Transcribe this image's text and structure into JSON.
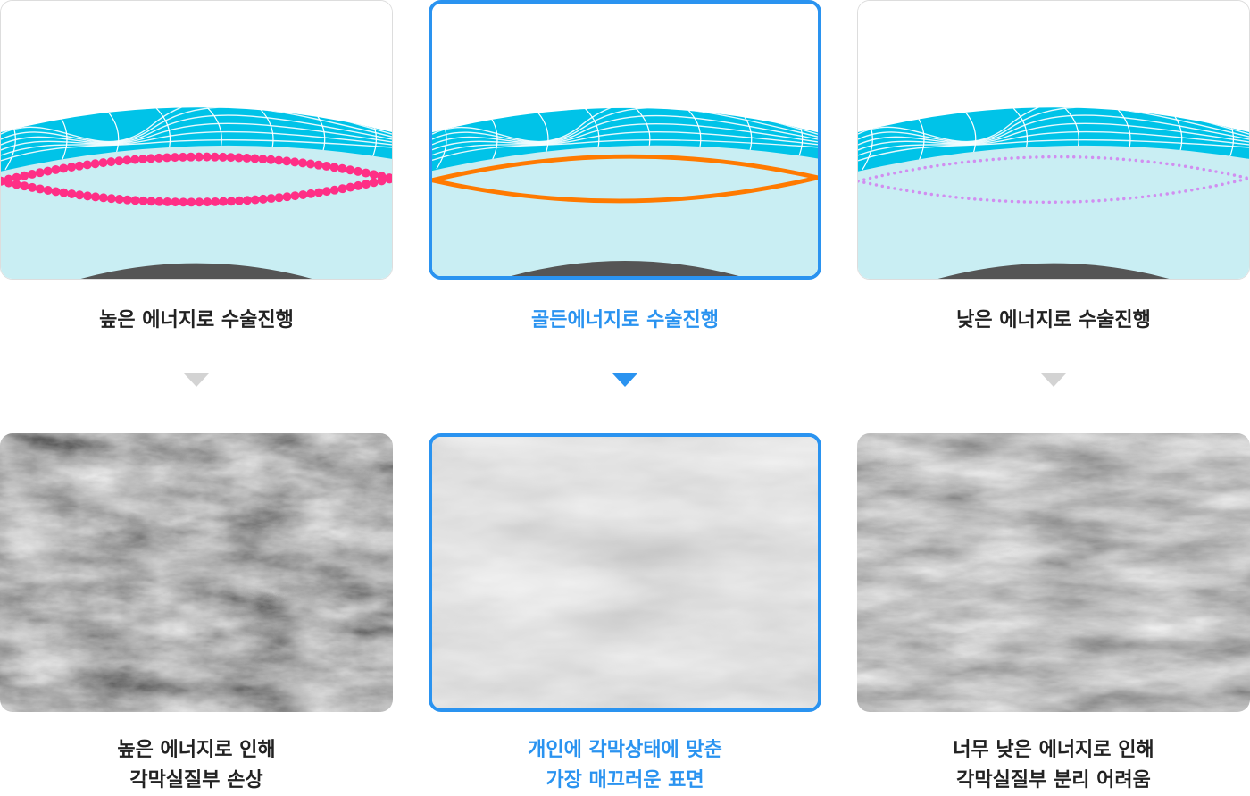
{
  "columns": [
    {
      "title": "높은 에너지로 수술진행",
      "caption": [
        "높은 에너지로 인해",
        "각막실질부 손상"
      ]
    },
    {
      "title": "골든에너지로 수술진행",
      "caption": [
        "개인에 각막상태에 맞춘",
        "가장 매끄러운 표면"
      ]
    },
    {
      "title": "낮은 에너지로 수술진행",
      "caption": [
        "너무 낮은 에너지로 인해",
        "각막실질부 분리 어려움"
      ]
    }
  ]
}
